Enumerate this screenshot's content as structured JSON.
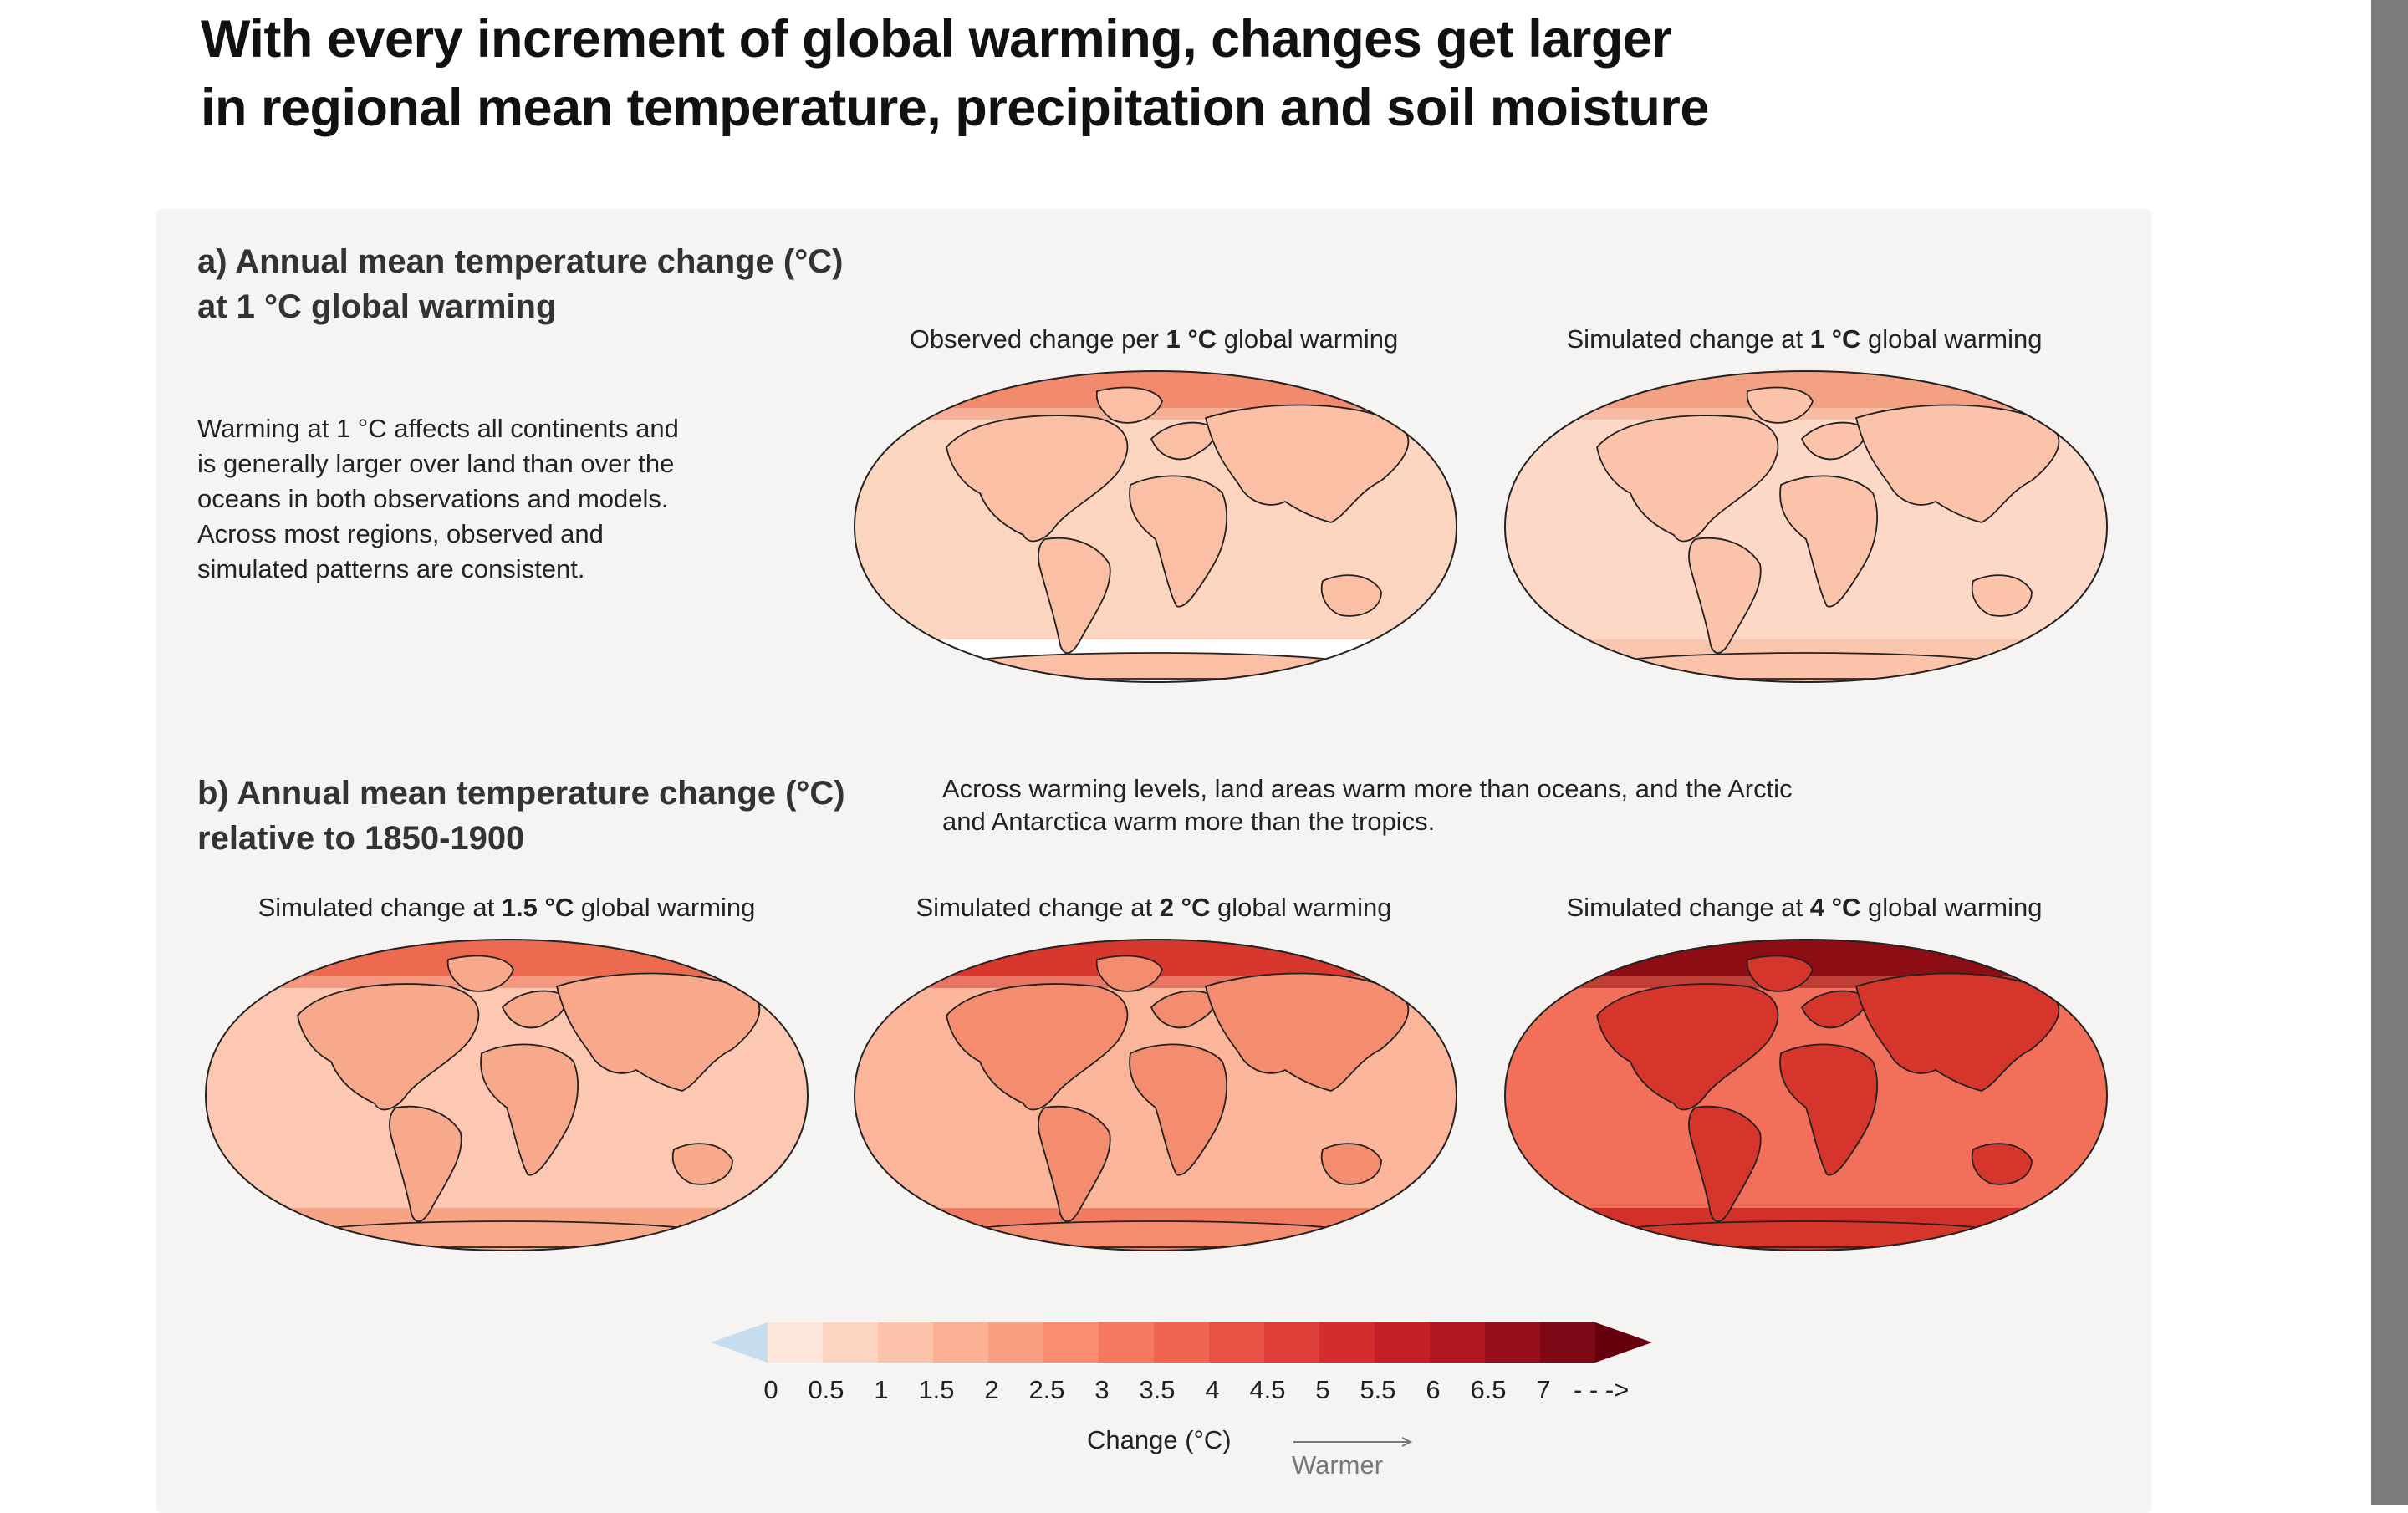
{
  "title_line1": "With every increment of global warming, changes get larger",
  "title_line2": "in regional mean temperature, precipitation and soil moisture",
  "panel_a": {
    "heading_line1": "a) Annual mean temperature change (°C)",
    "heading_line2": "at 1 °C global warming",
    "description": [
      "Warming at 1 °C affects all continents and",
      "is generally larger over land than over the",
      "oceans in both observations and models.",
      "Across most regions, observed and",
      "simulated patterns are consistent."
    ],
    "maps": [
      {
        "prefix": "Observed change per ",
        "value": "1 °C",
        "suffix": " global warming",
        "ocean": "#fcd5c1",
        "land": "#fbbfa6",
        "arctic": "#f28b6e",
        "antarctic": "#ffffff"
      },
      {
        "prefix": "Simulated change at ",
        "value": "1 °C",
        "suffix": " global warming",
        "ocean": "#fdd8c6",
        "land": "#fbc3a9",
        "arctic": "#f4a082",
        "antarctic": "#f9c5ad"
      }
    ]
  },
  "panel_b": {
    "heading_line1": "b) Annual mean temperature change (°C)",
    "heading_line2": "relative to 1850-1900",
    "note_line1": "Across warming levels, land areas warm more than oceans, and the Arctic",
    "note_line2": "and Antarctica warm more than the tropics.",
    "maps": [
      {
        "prefix": "Simulated change at ",
        "value": "1.5 °C",
        "suffix": " global warming",
        "ocean": "#fcc8b1",
        "land": "#f9a98b",
        "arctic": "#ec6a4f",
        "antarctic": "#f7a386"
      },
      {
        "prefix": "Simulated change at ",
        "value": "2 °C",
        "suffix": " global warming",
        "ocean": "#fbb59a",
        "land": "#f48c6f",
        "arctic": "#d8372d",
        "antarctic": "#f07b60"
      },
      {
        "prefix": "Simulated change at ",
        "value": "4 °C",
        "suffix": " global warming",
        "ocean": "#f27059",
        "land": "#d6352b",
        "arctic": "#8c0d13",
        "antarctic": "#d3302a"
      }
    ]
  },
  "colorbar": {
    "ticks": [
      "0",
      "0.5",
      "1",
      "1.5",
      "2",
      "2.5",
      "3",
      "3.5",
      "4",
      "4.5",
      "5",
      "5.5",
      "6",
      "6.5",
      "7"
    ],
    "colors": [
      "#fde5d9",
      "#fdd4c1",
      "#fcc3aa",
      "#fcb195",
      "#fb9f82",
      "#fa8c6f",
      "#f6795f",
      "#f06550",
      "#e75245",
      "#dd3e38",
      "#d32d2e",
      "#c31f27",
      "#ae1620",
      "#970f1a",
      "#7e0916"
    ],
    "below_color": "#c6dcef",
    "above_color": "#67000d",
    "label": "Change (°C)",
    "arrow_label": "Warmer"
  }
}
